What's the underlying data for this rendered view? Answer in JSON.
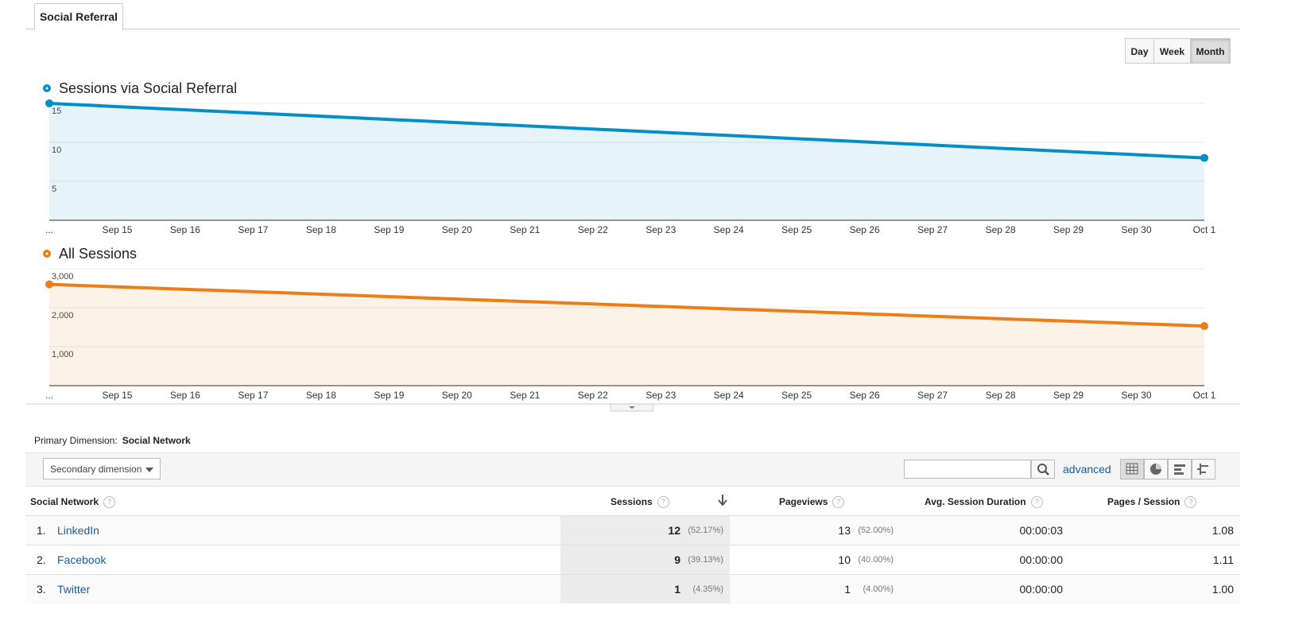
{
  "tab": "Social Referral",
  "period_buttons": [
    "Day",
    "Week",
    "Month"
  ],
  "chart_data": [
    {
      "type": "line",
      "xticks": [
        "...",
        "Sep 15",
        "Sep 16",
        "Sep 17",
        "Sep 18",
        "Sep 19",
        "Sep 20",
        "Sep 21",
        "Sep 22",
        "Sep 23",
        "Sep 24",
        "Sep 25",
        "Sep 26",
        "Sep 27",
        "Sep 28",
        "Sep 29",
        "Sep 30",
        "Oct 1"
      ],
      "x": [
        "...",
        "Oct 1"
      ],
      "series": [
        {
          "name": "Sessions via Social Referral",
          "color": "#058dc7",
          "values": [
            15,
            8
          ]
        }
      ],
      "ylim": [
        0,
        15
      ],
      "yticks": [
        5,
        10,
        15
      ],
      "grid": true
    },
    {
      "type": "line",
      "xticks": [
        "...",
        "Sep 15",
        "Sep 16",
        "Sep 17",
        "Sep 18",
        "Sep 19",
        "Sep 20",
        "Sep 21",
        "Sep 22",
        "Sep 23",
        "Sep 24",
        "Sep 25",
        "Sep 26",
        "Sep 27",
        "Sep 28",
        "Sep 29",
        "Sep 30",
        "Oct 1"
      ],
      "x": [
        "...",
        "Oct 1"
      ],
      "series": [
        {
          "name": "All Sessions",
          "color": "#ed7e17",
          "values": [
            2600,
            1530
          ]
        }
      ],
      "ylim": [
        0,
        3000
      ],
      "yticks": [
        {
          "value": 1000,
          "label": "1,000"
        },
        {
          "value": 2000,
          "label": "2,000"
        },
        {
          "value": 3000,
          "label": "3,000"
        }
      ],
      "grid": true
    }
  ],
  "primary_dimension": {
    "label": "Primary Dimension:",
    "value": "Social Network"
  },
  "secondary_dimension": "Secondary dimension",
  "advanced": "advanced",
  "table": {
    "columns": [
      "Social Network",
      "Sessions",
      "Pageviews",
      "Avg. Session Duration",
      "Pages / Session"
    ],
    "rows": [
      {
        "rank": "1.",
        "network": "LinkedIn",
        "sessions": "12",
        "sessions_pct": "(52.17%)",
        "pageviews": "13",
        "pageviews_pct": "(52.00%)",
        "duration": "00:00:03",
        "pages_per_session": "1.08"
      },
      {
        "rank": "2.",
        "network": "Facebook",
        "sessions": "9",
        "sessions_pct": "(39.13%)",
        "pageviews": "10",
        "pageviews_pct": "(40.00%)",
        "duration": "00:00:00",
        "pages_per_session": "1.11"
      },
      {
        "rank": "3.",
        "network": "Twitter",
        "sessions": "1",
        "sessions_pct": "(4.35%)",
        "pageviews": "1",
        "pageviews_pct": "(4.00%)",
        "duration": "00:00:00",
        "pages_per_session": "1.00"
      }
    ]
  }
}
